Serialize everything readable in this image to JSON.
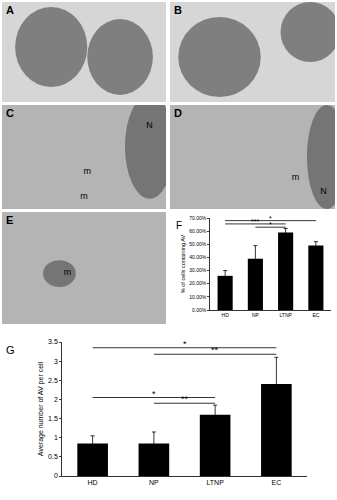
{
  "figure": {
    "panels": [
      {
        "label": "A",
        "marks": []
      },
      {
        "label": "B",
        "marks": []
      },
      {
        "label": "C",
        "marks": [
          "N",
          "m",
          "m"
        ]
      },
      {
        "label": "D",
        "marks": [
          "m",
          "N"
        ]
      },
      {
        "label": "E",
        "marks": [
          "m"
        ]
      }
    ]
  },
  "chart_data": [
    {
      "type": "bar",
      "title": "F",
      "categories": [
        "HD",
        "NP",
        "LTNP",
        "EC"
      ],
      "values": [
        26,
        39,
        59,
        49
      ],
      "errors": [
        4,
        10,
        3,
        3
      ],
      "color": "#000000",
      "y_label": "% of cells containing AV",
      "ylim": [
        0,
        70
      ],
      "yticks": [
        {
          "value": 0,
          "label": "0.00%"
        },
        {
          "value": 10,
          "label": "10.00%"
        },
        {
          "value": 20,
          "label": "20.00%"
        },
        {
          "value": 30,
          "label": "30.00%"
        },
        {
          "value": 40,
          "label": "40.00%"
        },
        {
          "value": 50,
          "label": "50.00%"
        },
        {
          "value": 60,
          "label": "60.00%"
        },
        {
          "value": 70,
          "label": "70.00%"
        }
      ],
      "significance": [
        {
          "from": "HD",
          "to": "EC",
          "y": 68,
          "label": "*"
        },
        {
          "from": "HD",
          "to": "LTNP",
          "y": 65.5,
          "label": "***"
        },
        {
          "from": "NP",
          "to": "LTNP",
          "y": 63,
          "label": "*"
        }
      ]
    },
    {
      "type": "bar",
      "title": "G",
      "categories": [
        "HD",
        "NP",
        "LTNP",
        "EC"
      ],
      "values": [
        0.85,
        0.85,
        1.6,
        2.4
      ],
      "errors": [
        0.2,
        0.3,
        0.25,
        0.7
      ],
      "color": "#000000",
      "y_label": "Average number of AV per cell",
      "ylim": [
        0,
        3.5
      ],
      "yticks": [
        0,
        0.5,
        1,
        1.5,
        2,
        2.5,
        3,
        3.5
      ],
      "significance": [
        {
          "from": "HD",
          "to": "EC",
          "y": 3.35,
          "label": "*"
        },
        {
          "from": "NP",
          "to": "EC",
          "y": 3.18,
          "label": "**"
        },
        {
          "from": "HD",
          "to": "LTNP",
          "y": 2.05,
          "label": "*"
        },
        {
          "from": "NP",
          "to": "LTNP",
          "y": 1.9,
          "label": "**"
        }
      ]
    }
  ]
}
